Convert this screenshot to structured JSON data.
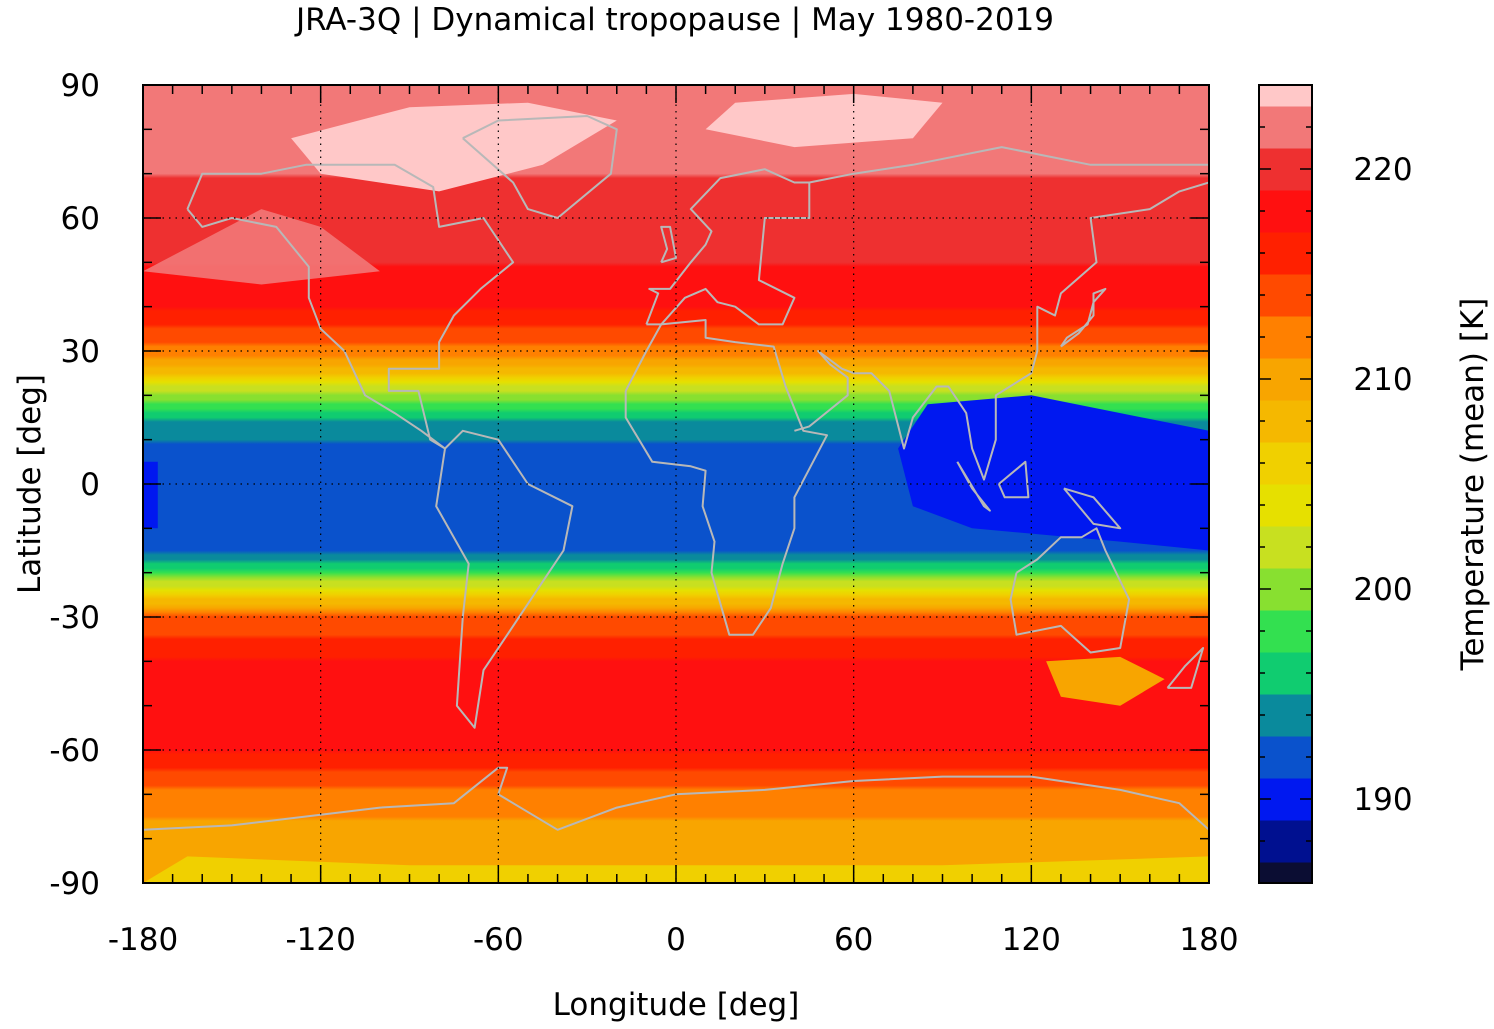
{
  "chart_data": {
    "type": "heatmap",
    "title": "JRA-3Q | Dynamical tropopause | May 1980-2019",
    "xlabel": "Longitude [deg]",
    "ylabel": "Latitude [deg]",
    "xlim": [
      -180,
      180
    ],
    "ylim": [
      -90,
      90
    ],
    "x_ticks": [
      "-180",
      "-120",
      "-60",
      "0",
      "60",
      "120",
      "180"
    ],
    "y_ticks": [
      "90",
      "60",
      "30",
      "0",
      "-30",
      "-60",
      "-90"
    ],
    "grid": true,
    "colorbar": {
      "label": "Temperature (mean) [K]",
      "min": 186,
      "max": 224,
      "ticks": [
        "190",
        "200",
        "210",
        "220"
      ],
      "levels": [
        186,
        187,
        189,
        191,
        193,
        195,
        197,
        199,
        201,
        203,
        205,
        207,
        209,
        211,
        213,
        215,
        217,
        219,
        221,
        223,
        224
      ],
      "colors": [
        "#0b0d33",
        "#001090",
        "#0018f0",
        "#0a52cc",
        "#0a8a9c",
        "#10cc70",
        "#33e050",
        "#88e030",
        "#c8e020",
        "#e6e000",
        "#f0d000",
        "#f5b800",
        "#f8a500",
        "#ff8000",
        "#ff4a00",
        "#ff2000",
        "#ff1010",
        "#ee3030",
        "#f27878",
        "#ffc8c8"
      ]
    },
    "zonal_mean_profile": {
      "lat": [
        -90,
        -80,
        -70,
        -60,
        -50,
        -40,
        -30,
        -25,
        -20,
        -15,
        -10,
        0,
        10,
        15,
        20,
        25,
        30,
        40,
        50,
        60,
        70,
        80,
        90
      ],
      "temperature_K": [
        210,
        210,
        212,
        217,
        218,
        217,
        213,
        206,
        198,
        192,
        192,
        192,
        193,
        195,
        200,
        207,
        212,
        217,
        219,
        220,
        221,
        222,
        222
      ]
    },
    "overlay": "coastlines"
  },
  "colors": {
    "coastline": "#b8b8b8",
    "grid": "#000000",
    "frame": "#000000"
  }
}
